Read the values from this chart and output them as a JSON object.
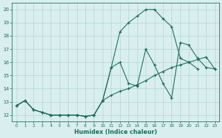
{
  "line1_x": [
    0,
    1,
    2,
    3,
    4,
    5,
    6,
    7,
    8,
    9,
    10,
    11,
    12,
    13,
    14,
    15,
    16,
    17,
    18,
    19,
    20,
    21
  ],
  "line1_y": [
    12.7,
    13.1,
    12.4,
    12.2,
    12.0,
    12.0,
    12.0,
    12.0,
    11.9,
    12.0,
    13.1,
    15.6,
    18.3,
    19.0,
    19.5,
    20.0,
    20.0,
    19.3,
    18.7,
    16.3,
    16.0,
    15.5
  ],
  "line2_x": [
    0,
    1,
    2,
    3,
    4,
    5,
    6,
    7,
    8,
    9,
    10,
    11,
    12,
    13,
    14,
    15,
    16,
    17,
    18,
    19,
    20,
    21,
    22,
    23
  ],
  "line2_y": [
    12.7,
    13.1,
    12.4,
    12.2,
    12.0,
    12.0,
    12.0,
    12.0,
    11.9,
    12.0,
    13.1,
    15.6,
    16.0,
    14.4,
    14.2,
    17.0,
    15.8,
    14.4,
    13.3,
    17.5,
    17.3,
    16.3,
    15.6,
    15.5
  ],
  "line3_x": [
    0,
    1,
    2,
    3,
    4,
    5,
    6,
    7,
    8,
    9,
    10,
    11,
    12,
    13,
    14,
    15,
    16,
    17,
    18,
    19,
    20,
    21,
    22,
    23
  ],
  "line3_y": [
    12.7,
    13.1,
    12.4,
    12.2,
    12.0,
    12.0,
    12.0,
    12.0,
    11.9,
    12.0,
    13.1,
    13.5,
    13.8,
    14.0,
    14.3,
    14.6,
    15.0,
    15.3,
    15.6,
    15.8,
    16.0,
    16.2,
    16.4,
    15.5
  ],
  "line_color": "#1a6b5a",
  "bg_color": "#d9eeee",
  "grid_color": "#b0d4d4",
  "xlabel": "Humidex (Indice chaleur)",
  "xlim": [
    -0.5,
    23.5
  ],
  "ylim": [
    11.5,
    20.5
  ],
  "yticks": [
    12,
    13,
    14,
    15,
    16,
    17,
    18,
    19,
    20
  ],
  "xticks": [
    0,
    1,
    2,
    3,
    4,
    5,
    6,
    7,
    8,
    9,
    10,
    11,
    12,
    13,
    14,
    15,
    16,
    17,
    18,
    19,
    20,
    21,
    22,
    23
  ]
}
